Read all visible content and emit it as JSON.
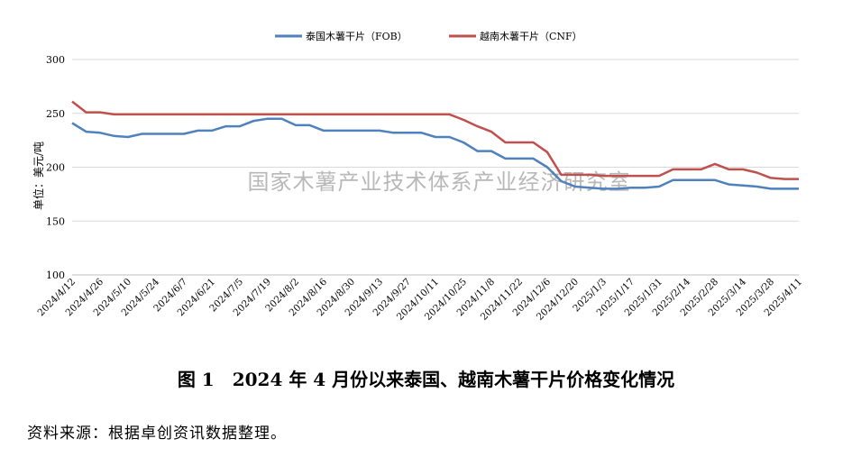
{
  "chart_data": {
    "type": "line",
    "ylabel": "单位：美元/吨",
    "ylim": [
      100,
      300
    ],
    "yticks": [
      100,
      150,
      200,
      250,
      300
    ],
    "grid": true,
    "legend_placement": "top",
    "watermark": "国家木薯产业技术体系产业经济研究室",
    "x": [
      "2024/4/12",
      "2024/4/19",
      "2024/4/26",
      "2024/5/3",
      "2024/5/10",
      "2024/5/17",
      "2024/5/24",
      "2024/5/31",
      "2024/6/7",
      "2024/6/14",
      "2024/6/21",
      "2024/6/28",
      "2024/7/5",
      "2024/7/12",
      "2024/7/19",
      "2024/7/26",
      "2024/8/2",
      "2024/8/9",
      "2024/8/16",
      "2024/8/23",
      "2024/8/30",
      "2024/9/6",
      "2024/9/13",
      "2024/9/20",
      "2024/9/27",
      "2024/10/4",
      "2024/10/11",
      "2024/10/18",
      "2024/10/25",
      "2024/11/1",
      "2024/11/8",
      "2024/11/15",
      "2024/11/22",
      "2024/11/29",
      "2024/12/6",
      "2024/12/13",
      "2024/12/20",
      "2024/12/27",
      "2025/1/3",
      "2025/1/10",
      "2025/1/17",
      "2025/1/24",
      "2025/1/31",
      "2025/2/7",
      "2025/2/14",
      "2025/2/21",
      "2025/2/28",
      "2025/3/7",
      "2025/3/14",
      "2025/3/21",
      "2025/3/28",
      "2025/4/4",
      "2025/4/11"
    ],
    "xtick_labels": [
      "2024/4/12",
      "2024/4/26",
      "2024/5/10",
      "2024/5/24",
      "2024/6/7",
      "2024/6/21",
      "2024/7/5",
      "2024/7/19",
      "2024/8/2",
      "2024/8/16",
      "2024/8/30",
      "2024/9/13",
      "2024/9/27",
      "2024/10/11",
      "2024/10/25",
      "2024/11/8",
      "2024/11/22",
      "2024/12/6",
      "2024/12/20",
      "2025/1/3",
      "2025/1/17",
      "2025/1/31",
      "2025/2/14",
      "2025/2/28",
      "2025/3/14",
      "2025/3/28",
      "2025/4/11"
    ],
    "series": [
      {
        "name": "泰国木薯干片（FOB）",
        "color": "#4f81bd",
        "values": [
          241,
          233,
          232,
          229,
          228,
          231,
          231,
          231,
          231,
          234,
          234,
          238,
          238,
          243,
          245,
          245,
          239,
          239,
          234,
          234,
          234,
          234,
          234,
          232,
          232,
          232,
          228,
          228,
          223,
          215,
          215,
          208,
          208,
          208,
          200,
          187,
          182,
          181,
          180,
          180,
          181,
          181,
          182,
          188,
          188,
          188,
          188,
          184,
          183,
          182,
          180,
          180,
          180
        ]
      },
      {
        "name": "越南木薯干片（CNF）",
        "color": "#c0504d",
        "values": [
          261,
          251,
          251,
          249,
          249,
          249,
          249,
          249,
          249,
          249,
          249,
          249,
          249,
          249,
          249,
          249,
          249,
          249,
          249,
          249,
          249,
          249,
          249,
          249,
          249,
          249,
          249,
          249,
          244,
          238,
          233,
          223,
          223,
          223,
          214,
          193,
          193,
          193,
          192,
          192,
          192,
          192,
          192,
          198,
          198,
          198,
          203,
          198,
          198,
          195,
          190,
          189,
          189
        ]
      }
    ]
  },
  "caption": "图 1　2024 年 4 月份以来泰国、越南木薯干片价格变化情况",
  "source": "资料来源：根据卓创资讯数据整理。"
}
